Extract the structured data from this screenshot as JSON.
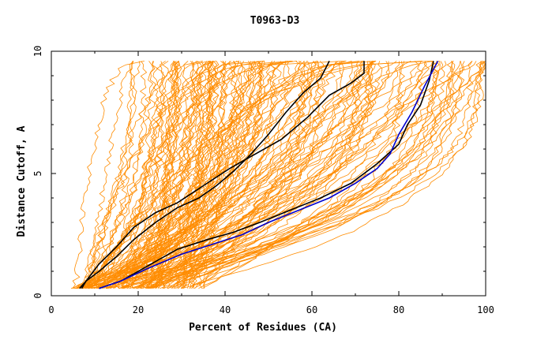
{
  "chart_data": {
    "type": "line",
    "title": "T0963-D3",
    "xlabel": "Percent of Residues (CA)",
    "ylabel": "Distance Cutoff, A",
    "xlim": [
      0,
      100
    ],
    "ylim": [
      0,
      10
    ],
    "xticks": [
      "0",
      "20",
      "40",
      "60",
      "80",
      "100"
    ],
    "yticks": [
      "0",
      "5",
      "10"
    ],
    "colors": {
      "background_group": "#ff8c00",
      "highlight_black": "#000000",
      "highlight_blue": "#0000cd"
    },
    "background_group": {
      "count": 160,
      "x_at_0_5_range": [
        5,
        35
      ],
      "x_at_9_5_range": [
        17,
        100
      ]
    },
    "series": [
      {
        "color": "#000000",
        "x": [
          7,
          8,
          11,
          15,
          19,
          24,
          29,
          34,
          38,
          42,
          46,
          50,
          54,
          58,
          62,
          64
        ],
        "y": [
          0.3,
          0.6,
          1.0,
          1.6,
          2.3,
          3.0,
          3.6,
          4.0,
          4.5,
          5.1,
          5.8,
          6.6,
          7.5,
          8.3,
          8.9,
          9.6
        ]
      },
      {
        "color": "#000000",
        "x": [
          6.5,
          8,
          11,
          15,
          19,
          24,
          29,
          35,
          41,
          47,
          53,
          59,
          64,
          69,
          72,
          72
        ],
        "y": [
          0.3,
          0.6,
          1.3,
          2.0,
          2.8,
          3.4,
          3.8,
          4.5,
          5.2,
          5.8,
          6.4,
          7.3,
          8.2,
          8.7,
          9.1,
          9.6
        ]
      },
      {
        "color": "#000000",
        "x": [
          11,
          16,
          22,
          29,
          36,
          42,
          48,
          55,
          62,
          69,
          75,
          80,
          82,
          85,
          87,
          88
        ],
        "y": [
          0.3,
          0.6,
          1.2,
          1.9,
          2.3,
          2.6,
          3.0,
          3.5,
          4.0,
          4.6,
          5.4,
          6.2,
          7.0,
          7.8,
          8.8,
          9.6
        ]
      },
      {
        "color": "#0000cd",
        "x": [
          11,
          16,
          22,
          30,
          37,
          44,
          50,
          57,
          64,
          70,
          75,
          78,
          80,
          83,
          86,
          89
        ],
        "y": [
          0.3,
          0.6,
          1.1,
          1.7,
          2.1,
          2.5,
          3.0,
          3.5,
          4.0,
          4.6,
          5.2,
          5.8,
          6.6,
          7.5,
          8.6,
          9.6
        ]
      }
    ]
  }
}
